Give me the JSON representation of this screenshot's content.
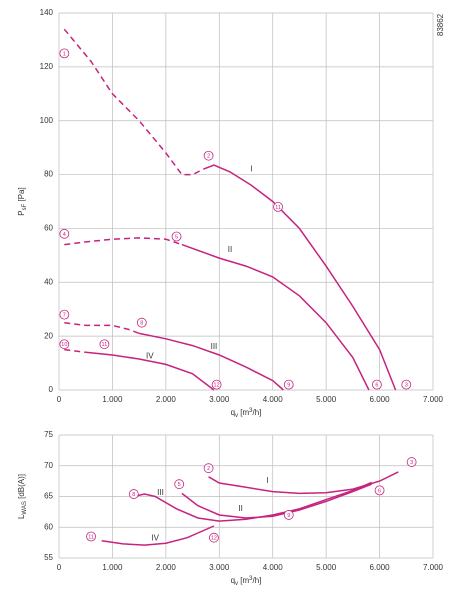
{
  "chart_data": [
    {
      "type": "line",
      "id_text": "83862",
      "ylabel": {
        "main": "P",
        "sub": "sF",
        "unit": " [Pa]"
      },
      "xlabel": {
        "main": "q",
        "sub": "v",
        "unit": " [m",
        "sup": "3",
        "tail": "/h]"
      },
      "xlim": [
        0,
        7000
      ],
      "ylim": [
        0,
        140
      ],
      "xticks": [
        0,
        {
          "value": 1000,
          "label": "1.000"
        },
        {
          "value": 2000,
          "label": "2.000"
        },
        {
          "value": 3000,
          "label": "3.000"
        },
        {
          "value": 4000,
          "label": "4.000"
        },
        {
          "value": 5000,
          "label": "5.000"
        },
        {
          "value": 6000,
          "label": "6.000"
        },
        {
          "value": 7000,
          "label": "7.000"
        }
      ],
      "yticks": [
        0,
        20,
        40,
        60,
        80,
        100,
        120,
        140
      ],
      "grid": true,
      "color": "#c6237f",
      "series": [
        {
          "name": "I",
          "label_x": 3600,
          "label_y": 82,
          "segments": [
            {
              "style": "dashed",
              "x": [
                100,
                600,
                1000,
                1500,
                2000,
                2300,
                2500,
                2700
              ],
              "y": [
                134,
                122,
                110,
                100,
                88,
                80,
                80,
                82
              ]
            },
            {
              "style": "solid",
              "x": [
                2700,
                2900,
                3200,
                3600,
                4000,
                4500,
                5000,
                5500,
                6000,
                6300
              ],
              "y": [
                82,
                83.5,
                81,
                76,
                70,
                60,
                46,
                31,
                15,
                0
              ]
            }
          ]
        },
        {
          "name": "II",
          "label_x": 3200,
          "label_y": 52,
          "segments": [
            {
              "style": "dashed",
              "x": [
                100,
                500,
                1000,
                1500,
                2000,
                2300
              ],
              "y": [
                54,
                55,
                56,
                56.5,
                56,
                54
              ]
            },
            {
              "style": "solid",
              "x": [
                2300,
                3000,
                3500,
                4000,
                4500,
                5000,
                5500,
                5800
              ],
              "y": [
                54,
                49,
                46,
                42,
                35,
                25,
                12,
                0
              ]
            }
          ]
        },
        {
          "name": "III",
          "label_x": 2900,
          "label_y": 16,
          "segments": [
            {
              "style": "dashed",
              "x": [
                100,
                500,
                1000,
                1300,
                1500
              ],
              "y": [
                25,
                24,
                24,
                22.5,
                21
              ]
            },
            {
              "style": "solid",
              "x": [
                1500,
                2000,
                2500,
                3000,
                3500,
                4000,
                4200
              ],
              "y": [
                21,
                19,
                16.5,
                13,
                8.5,
                3.5,
                0
              ]
            }
          ]
        },
        {
          "name": "IV",
          "label_x": 1700,
          "label_y": 12.5,
          "segments": [
            {
              "style": "dashed",
              "x": [
                100,
                500
              ],
              "y": [
                15,
                14
              ]
            },
            {
              "style": "solid",
              "x": [
                500,
                1000,
                1500,
                2000,
                2500,
                2900
              ],
              "y": [
                14,
                13,
                11.5,
                9.5,
                6,
                0
              ]
            }
          ]
        }
      ],
      "annotations": [
        {
          "text": "1",
          "x": 100,
          "y": 125
        },
        {
          "text": "2",
          "x": 2800,
          "y": 87
        },
        {
          "text": "3",
          "x": 6500,
          "y": 2
        },
        {
          "text": "11",
          "x": 4100,
          "y": 68
        },
        {
          "text": "4",
          "x": 100,
          "y": 58
        },
        {
          "text": "5",
          "x": 2200,
          "y": 57
        },
        {
          "text": "6",
          "x": 5950,
          "y": 2
        },
        {
          "text": "7",
          "x": 100,
          "y": 28
        },
        {
          "text": "8",
          "x": 1550,
          "y": 25
        },
        {
          "text": "9",
          "x": 4300,
          "y": 2
        },
        {
          "text": "10",
          "x": 100,
          "y": 17
        },
        {
          "text": "11",
          "x": 850,
          "y": 17
        },
        {
          "text": "12",
          "x": 2950,
          "y": 2
        }
      ]
    },
    {
      "type": "line",
      "ylabel": {
        "main": "L",
        "sub": "WAS",
        "unit": " [dB(A)]"
      },
      "xlabel": {
        "main": "q",
        "sub": "v",
        "unit": " [m",
        "sup": "3",
        "tail": "/h]"
      },
      "xlim": [
        0,
        7000
      ],
      "ylim": [
        55,
        75
      ],
      "xticks": [
        0,
        {
          "value": 1000,
          "label": "1.000"
        },
        {
          "value": 2000,
          "label": "2.000"
        },
        {
          "value": 3000,
          "label": "3.000"
        },
        {
          "value": 4000,
          "label": "4.000"
        },
        {
          "value": 5000,
          "label": "5.000"
        },
        {
          "value": 6000,
          "label": "6.000"
        },
        {
          "value": 7000,
          "label": "7.000"
        }
      ],
      "yticks": [
        55,
        60,
        65,
        70,
        75
      ],
      "grid": true,
      "color": "#c6237f",
      "series": [
        {
          "name": "I",
          "label_x": 3900,
          "label_y": 67.5,
          "segments": [
            {
              "style": "solid",
              "x": [
                2800,
                3000,
                3500,
                4000,
                4500,
                5000,
                5500,
                6000,
                6350
              ],
              "y": [
                68.2,
                67.2,
                66.5,
                65.8,
                65.5,
                65.6,
                66.2,
                67.5,
                69
              ]
            }
          ]
        },
        {
          "name": "II",
          "label_x": 3400,
          "label_y": 63,
          "segments": [
            {
              "style": "solid",
              "x": [
                2300,
                2600,
                3000,
                3500,
                4000,
                4500,
                5000,
                5500,
                5850
              ],
              "y": [
                65.5,
                63.5,
                62,
                61.5,
                61.8,
                62.8,
                64.2,
                65.8,
                67
              ]
            }
          ]
        },
        {
          "name": "III",
          "label_x": 1900,
          "label_y": 65.6,
          "segments": [
            {
              "style": "solid",
              "x": [
                1400,
                1600,
                1800,
                2200,
                2600,
                3000,
                3500,
                4000,
                4500,
                5000,
                5500,
                5850
              ],
              "y": [
                65,
                65.4,
                65,
                63,
                61.5,
                61,
                61.3,
                62,
                63,
                64.5,
                66,
                67.3
              ]
            }
          ]
        },
        {
          "name": "IV",
          "label_x": 1800,
          "label_y": 58.2,
          "segments": [
            {
              "style": "solid",
              "x": [
                800,
                1200,
                1600,
                2000,
                2400,
                2900
              ],
              "y": [
                57.8,
                57.3,
                57.1,
                57.4,
                58.3,
                60.2
              ]
            }
          ]
        }
      ],
      "annotations": [
        {
          "text": "2",
          "x": 2800,
          "y": 69.6
        },
        {
          "text": "3",
          "x": 6600,
          "y": 70.6
        },
        {
          "text": "5",
          "x": 2250,
          "y": 67
        },
        {
          "text": "6",
          "x": 6000,
          "y": 66
        },
        {
          "text": "8",
          "x": 1400,
          "y": 65.4
        },
        {
          "text": "9",
          "x": 4300,
          "y": 62
        },
        {
          "text": "11",
          "x": 600,
          "y": 58.5
        },
        {
          "text": "12",
          "x": 2900,
          "y": 58.3
        }
      ]
    }
  ]
}
